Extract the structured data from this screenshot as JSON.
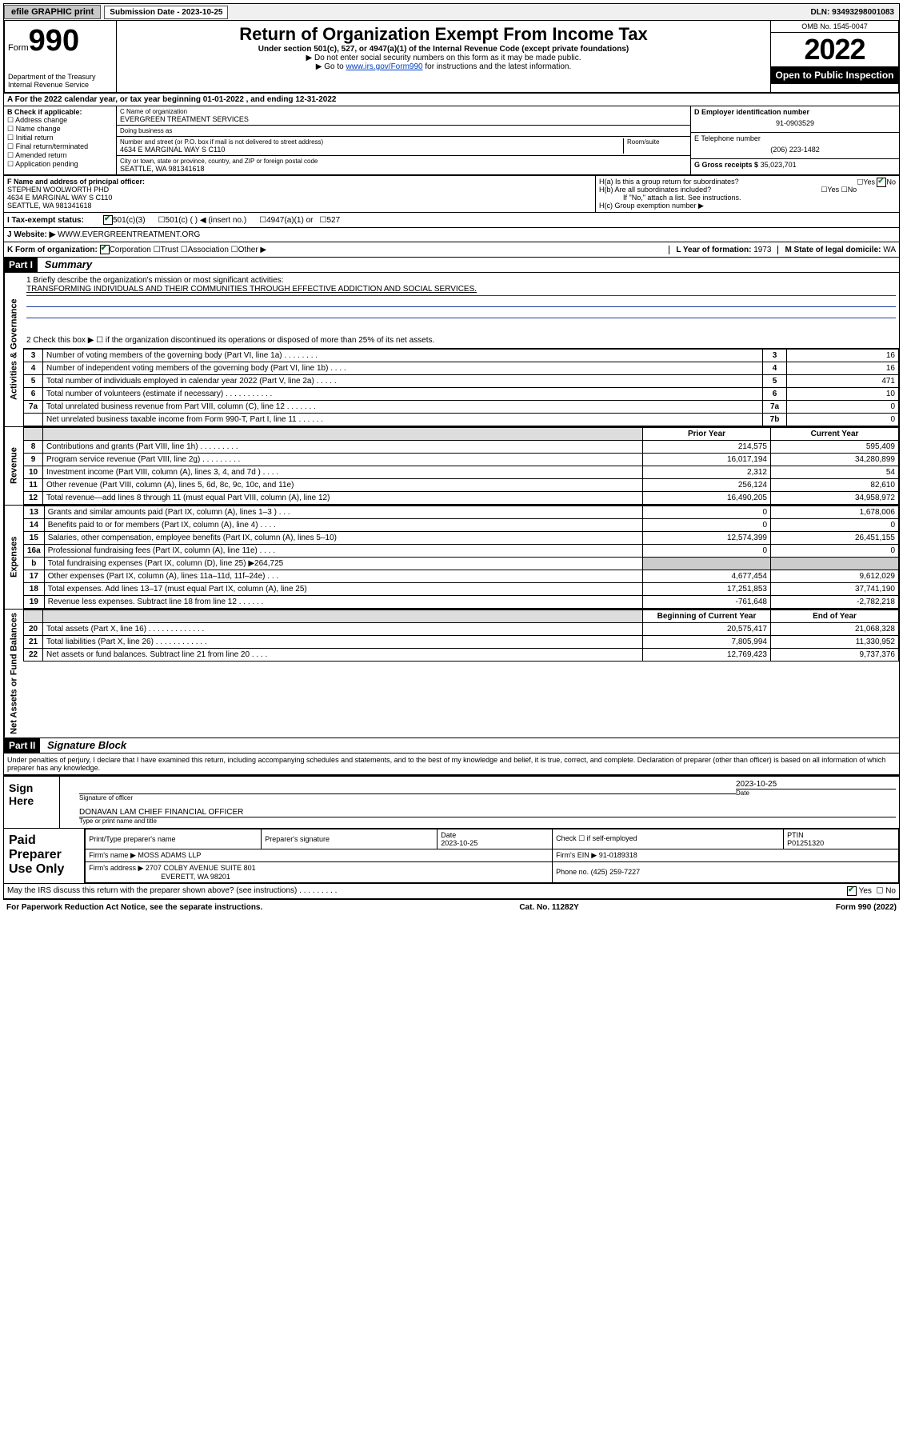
{
  "topbar": {
    "efile": "efile GRAPHIC print",
    "sub_label": "Submission Date - 2023-10-25",
    "dln": "DLN: 93493298001083"
  },
  "header": {
    "form_prefix": "Form",
    "form_no": "990",
    "dept": "Department of the Treasury\nInternal Revenue Service",
    "title": "Return of Organization Exempt From Income Tax",
    "sub": "Under section 501(c), 527, or 4947(a)(1) of the Internal Revenue Code (except private foundations)",
    "note1": "▶ Do not enter social security numbers on this form as it may be made public.",
    "note2_pre": "▶ Go to ",
    "note2_link": "www.irs.gov/Form990",
    "note2_post": " for instructions and the latest information.",
    "omb": "OMB No. 1545-0047",
    "year": "2022",
    "open": "Open to Public Inspection"
  },
  "rowA": "A For the 2022 calendar year, or tax year beginning 01-01-2022   , and ending 12-31-2022",
  "boxB": {
    "label": "B Check if applicable:",
    "items": [
      "Address change",
      "Name change",
      "Initial return",
      "Final return/terminated",
      "Amended return",
      "Application pending"
    ]
  },
  "boxC": {
    "name_lbl": "C Name of organization",
    "name": "EVERGREEN TREATMENT SERVICES",
    "dba_lbl": "Doing business as",
    "dba": "",
    "street_lbl": "Number and street (or P.O. box if mail is not delivered to street address)",
    "room_lbl": "Room/suite",
    "street": "4634 E MARGINAL WAY S C110",
    "city_lbl": "City or town, state or province, country, and ZIP or foreign postal code",
    "city": "SEATTLE, WA  981341618"
  },
  "boxD": {
    "ein_lbl": "D Employer identification number",
    "ein": "91-0903529",
    "phone_lbl": "E Telephone number",
    "phone": "(206) 223-1482",
    "gross_lbl": "G Gross receipts $",
    "gross": "35,023,701"
  },
  "boxF": {
    "lbl": "F Name and address of principal officer:",
    "name": "STEPHEN WOOLWORTH PHD",
    "addr1": "4634 E MARGINAL WAY S C110",
    "addr2": "SEATTLE, WA  981341618"
  },
  "boxH": {
    "a": "H(a)  Is this a group return for subordinates?",
    "a_yes": "Yes",
    "a_no": "No",
    "a_checked": "No",
    "b": "H(b)  Are all subordinates included?",
    "b_yes": "Yes",
    "b_no": "No",
    "b_note": "If \"No,\" attach a list. See instructions.",
    "c": "H(c)  Group exemption number ▶"
  },
  "rowI": {
    "lbl": "I  Tax-exempt status:",
    "opts": [
      "501(c)(3)",
      "501(c) (  ) ◀ (insert no.)",
      "4947(a)(1) or",
      "527"
    ],
    "checked": 0
  },
  "rowJ": {
    "lbl": "J  Website: ▶",
    "val": "WWW.EVERGREENTREATMENT.ORG"
  },
  "rowK": {
    "lbl": "K Form of organization:",
    "opts": [
      "Corporation",
      "Trust",
      "Association",
      "Other ▶"
    ],
    "checked": 0,
    "yr_lbl": "L Year of formation:",
    "yr": "1973",
    "state_lbl": "M State of legal domicile:",
    "state": "WA"
  },
  "part1": {
    "hdr": "Part I",
    "title": "Summary"
  },
  "mission": {
    "q1": "1  Briefly describe the organization's mission or most significant activities:",
    "text": "TRANSFORMING INDIVIDUALS AND THEIR COMMUNITIES THROUGH EFFECTIVE ADDICTION AND SOCIAL SERVICES.",
    "q2": "2  Check this box ▶ ☐ if the organization discontinued its operations or disposed of more than 25% of its net assets."
  },
  "sections": {
    "gov": "Activities & Governance",
    "rev": "Revenue",
    "exp": "Expenses",
    "net": "Net Assets or Fund Balances"
  },
  "lines_gov": [
    {
      "no": "3",
      "desc": "Number of voting members of the governing body (Part VI, line 1a)  .   .   .   .   .   .   .   .",
      "box": "3",
      "val": "16"
    },
    {
      "no": "4",
      "desc": "Number of independent voting members of the governing body (Part VI, line 1b)  .   .   .   .",
      "box": "4",
      "val": "16"
    },
    {
      "no": "5",
      "desc": "Total number of individuals employed in calendar year 2022 (Part V, line 2a)  .   .   .   .   .",
      "box": "5",
      "val": "471"
    },
    {
      "no": "6",
      "desc": "Total number of volunteers (estimate if necessary)  .   .   .   .   .   .   .   .   .   .   .",
      "box": "6",
      "val": "10"
    },
    {
      "no": "7a",
      "desc": "Total unrelated business revenue from Part VIII, column (C), line 12  .   .   .   .   .   .   .",
      "box": "7a",
      "val": "0"
    },
    {
      "no": "",
      "desc": "Net unrelated business taxable income from Form 990-T, Part I, line 11  .   .   .   .   .   .",
      "box": "7b",
      "val": "0"
    }
  ],
  "col_hdrs": {
    "prior": "Prior Year",
    "current": "Current Year"
  },
  "lines_rev": [
    {
      "no": "8",
      "desc": "Contributions and grants (Part VIII, line 1h)  .   .   .   .   .   .   .   .   .",
      "p": "214,575",
      "c": "595,409"
    },
    {
      "no": "9",
      "desc": "Program service revenue (Part VIII, line 2g)  .   .   .   .   .   .   .   .   .",
      "p": "16,017,194",
      "c": "34,280,899"
    },
    {
      "no": "10",
      "desc": "Investment income (Part VIII, column (A), lines 3, 4, and 7d )  .   .   .   .",
      "p": "2,312",
      "c": "54"
    },
    {
      "no": "11",
      "desc": "Other revenue (Part VIII, column (A), lines 5, 6d, 8c, 9c, 10c, and 11e)",
      "p": "256,124",
      "c": "82,610"
    },
    {
      "no": "12",
      "desc": "Total revenue—add lines 8 through 11 (must equal Part VIII, column (A), line 12)",
      "p": "16,490,205",
      "c": "34,958,972"
    }
  ],
  "lines_exp": [
    {
      "no": "13",
      "desc": "Grants and similar amounts paid (Part IX, column (A), lines 1–3 )  .   .   .",
      "p": "0",
      "c": "1,678,006"
    },
    {
      "no": "14",
      "desc": "Benefits paid to or for members (Part IX, column (A), line 4)  .   .   .   .",
      "p": "0",
      "c": "0"
    },
    {
      "no": "15",
      "desc": "Salaries, other compensation, employee benefits (Part IX, column (A), lines 5–10)",
      "p": "12,574,399",
      "c": "26,451,155"
    },
    {
      "no": "16a",
      "desc": "Professional fundraising fees (Part IX, column (A), line 11e)  .   .   .   .",
      "p": "0",
      "c": "0"
    },
    {
      "no": "b",
      "desc": "Total fundraising expenses (Part IX, column (D), line 25) ▶264,725",
      "p": "",
      "c": "",
      "shade": true
    },
    {
      "no": "17",
      "desc": "Other expenses (Part IX, column (A), lines 11a–11d, 11f–24e)  .   .   .",
      "p": "4,677,454",
      "c": "9,612,029"
    },
    {
      "no": "18",
      "desc": "Total expenses. Add lines 13–17 (must equal Part IX, column (A), line 25)",
      "p": "17,251,853",
      "c": "37,741,190"
    },
    {
      "no": "19",
      "desc": "Revenue less expenses. Subtract line 18 from line 12  .   .   .   .   .   .",
      "p": "-761,648",
      "c": "-2,782,218"
    }
  ],
  "col_hdrs2": {
    "beg": "Beginning of Current Year",
    "end": "End of Year"
  },
  "lines_net": [
    {
      "no": "20",
      "desc": "Total assets (Part X, line 16)  .   .   .   .   .   .   .   .   .   .   .   .   .",
      "p": "20,575,417",
      "c": "21,068,328"
    },
    {
      "no": "21",
      "desc": "Total liabilities (Part X, line 26)  .   .   .   .   .   .   .   .   .   .   .   .",
      "p": "7,805,994",
      "c": "11,330,952"
    },
    {
      "no": "22",
      "desc": "Net assets or fund balances. Subtract line 21 from line 20  .   .   .   .",
      "p": "12,769,423",
      "c": "9,737,376"
    }
  ],
  "part2": {
    "hdr": "Part II",
    "title": "Signature Block"
  },
  "decl": "Under penalties of perjury, I declare that I have examined this return, including accompanying schedules and statements, and to the best of my knowledge and belief, it is true, correct, and complete. Declaration of preparer (other than officer) is based on all information of which preparer has any knowledge.",
  "sign": {
    "here": "Sign Here",
    "sig_lbl": "Signature of officer",
    "date_lbl": "Date",
    "date": "2023-10-25",
    "name": "DONAVAN LAM  CHIEF FINANCIAL OFFICER",
    "name_lbl": "Type or print name and title"
  },
  "paid": {
    "lbl": "Paid Preparer Use Only",
    "col1": "Print/Type preparer's name",
    "col2": "Preparer's signature",
    "col3_lbl": "Date",
    "col3": "2023-10-25",
    "col4_lbl": "Check ☐ if self-employed",
    "col5_lbl": "PTIN",
    "col5": "P01251320",
    "firm_name_lbl": "Firm's name    ▶",
    "firm_name": "MOSS ADAMS LLP",
    "firm_ein_lbl": "Firm's EIN ▶",
    "firm_ein": "91-0189318",
    "firm_addr_lbl": "Firm's address ▶",
    "firm_addr1": "2707 COLBY AVENUE SUITE 801",
    "firm_addr2": "EVERETT, WA  98201",
    "phone_lbl": "Phone no.",
    "phone": "(425) 259-7227"
  },
  "mayirs": {
    "q": "May the IRS discuss this return with the preparer shown above? (see instructions)  .   .   .   .   .   .   .   .   .",
    "yes": "Yes",
    "no": "No",
    "checked": "Yes"
  },
  "footer": {
    "pra": "For Paperwork Reduction Act Notice, see the separate instructions.",
    "cat": "Cat. No. 11282Y",
    "form": "Form 990 (2022)"
  }
}
